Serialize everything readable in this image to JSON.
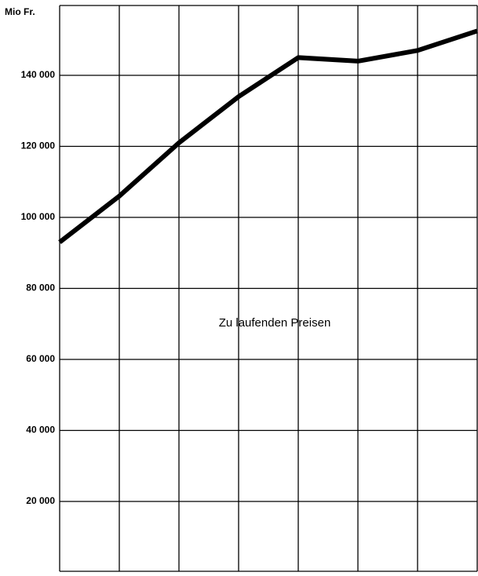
{
  "chart_data": {
    "type": "line",
    "ylabel": "Mio Fr.",
    "annotation": "Zu laufenden Preisen",
    "categories": [
      null,
      null,
      null,
      null,
      null,
      null,
      null,
      null
    ],
    "series": [
      {
        "name": null,
        "color": "#000000",
        "values": [
          93000,
          106000,
          121000,
          134000,
          145000,
          144000,
          147000,
          152500
        ]
      }
    ],
    "ylim": [
      0,
      160000
    ],
    "yticks": [
      {
        "value": 20000,
        "label": "20 000"
      },
      {
        "value": 40000,
        "label": "40 000"
      },
      {
        "value": 60000,
        "label": "60 000"
      },
      {
        "value": 80000,
        "label": "80 000"
      },
      {
        "value": 100000,
        "label": "100 000"
      },
      {
        "value": 120000,
        "label": "120 000"
      },
      {
        "value": 140000,
        "label": "140 000"
      }
    ],
    "grid": true
  }
}
